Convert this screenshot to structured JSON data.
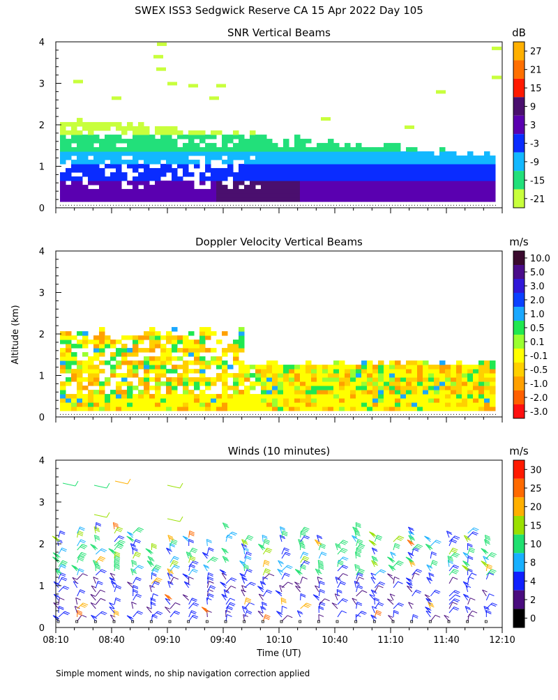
{
  "figure": {
    "title": "SWEX ISS3 Sedgwick Reserve CA  15 Apr 2022 Day 105",
    "ylabel": "Altitude (km)",
    "xlabel": "Time (UT)",
    "footnote": "Simple moment winds, no ship navigation correction applied"
  },
  "x_ticks": [
    "08:10",
    "08:40",
    "09:10",
    "09:40",
    "10:10",
    "10:40",
    "11:10",
    "11:40",
    "12:10"
  ],
  "y_ticks": [
    "0",
    "1",
    "2",
    "3",
    "4"
  ],
  "chart_data": [
    {
      "type": "heatmap",
      "title": "SNR Vertical Beams",
      "xlabel": "",
      "ylabel": "Altitude (km)",
      "x_range": [
        "08:10",
        "12:10"
      ],
      "ylim": [
        0,
        4
      ],
      "colorbar": {
        "unit": "dB",
        "labels": [
          "27",
          "21",
          "15",
          "9",
          "3",
          "-3",
          "-9",
          "-15",
          "-21"
        ],
        "colors": [
          "#ffb000",
          "#ff7000",
          "#ff1a00",
          "#4a0f6e",
          "#5a00b0",
          "#0a2cff",
          "#12b8ff",
          "#22e07a",
          "#c8ff3c"
        ]
      },
      "bands": [
        {
          "alt_km": [
            0.1,
            0.6
          ],
          "level_db": 3
        },
        {
          "alt_km": [
            0.6,
            1.0
          ],
          "level_db": -3
        },
        {
          "alt_km": [
            1.0,
            1.3
          ],
          "level_db": -9
        },
        {
          "alt_km": [
            1.3,
            1.7
          ],
          "level_db": -15
        },
        {
          "alt_km": [
            1.7,
            2.1
          ],
          "level_db": -21
        }
      ]
    },
    {
      "type": "heatmap",
      "title": "Doppler Velocity Vertical Beams",
      "xlabel": "",
      "ylabel": "Altitude (km)",
      "x_range": [
        "08:10",
        "12:10"
      ],
      "ylim": [
        0,
        4
      ],
      "colorbar": {
        "unit": "m/s",
        "labels": [
          "10.0",
          "5.0",
          "3.0",
          "2.0",
          "1.0",
          "0.5",
          "0.1",
          "-0.1",
          "-0.5",
          "-1.0",
          "-2.0",
          "-3.0"
        ],
        "colors": [
          "#3a0a2e",
          "#4a0c8a",
          "#3018d8",
          "#0a40ff",
          "#1aa8ff",
          "#20e850",
          "#9aff30",
          "#ffff00",
          "#ffd000",
          "#ffa000",
          "#ff6000",
          "#ff1010"
        ]
      },
      "dominant_range_ms": [
        -0.5,
        -0.1
      ]
    },
    {
      "type": "scatter",
      "title": "Winds (10 minutes)",
      "xlabel": "Time (UT)",
      "ylabel": "Altitude (km)",
      "x_range": [
        "08:10",
        "12:10"
      ],
      "ylim": [
        0,
        4
      ],
      "colorbar": {
        "unit": "m/s",
        "labels": [
          "30",
          "25",
          "20",
          "15",
          "10",
          "8",
          "4",
          "2",
          "0"
        ],
        "colors": [
          "#ff1a00",
          "#ff6a00",
          "#ffb000",
          "#9ae000",
          "#20e070",
          "#18b0ff",
          "#1020ff",
          "#4a0c7e",
          "#000000"
        ]
      },
      "profile_times": [
        "08:10",
        "08:20",
        "08:30",
        "08:40",
        "08:50",
        "09:00",
        "09:10",
        "09:20",
        "09:30",
        "09:40",
        "09:50",
        "10:00",
        "10:10",
        "10:20",
        "10:30",
        "10:40",
        "10:50",
        "11:00",
        "11:10",
        "11:20",
        "11:30",
        "11:40",
        "11:50",
        "12:00"
      ],
      "typical_speed_ms": [
        2,
        10
      ]
    }
  ]
}
